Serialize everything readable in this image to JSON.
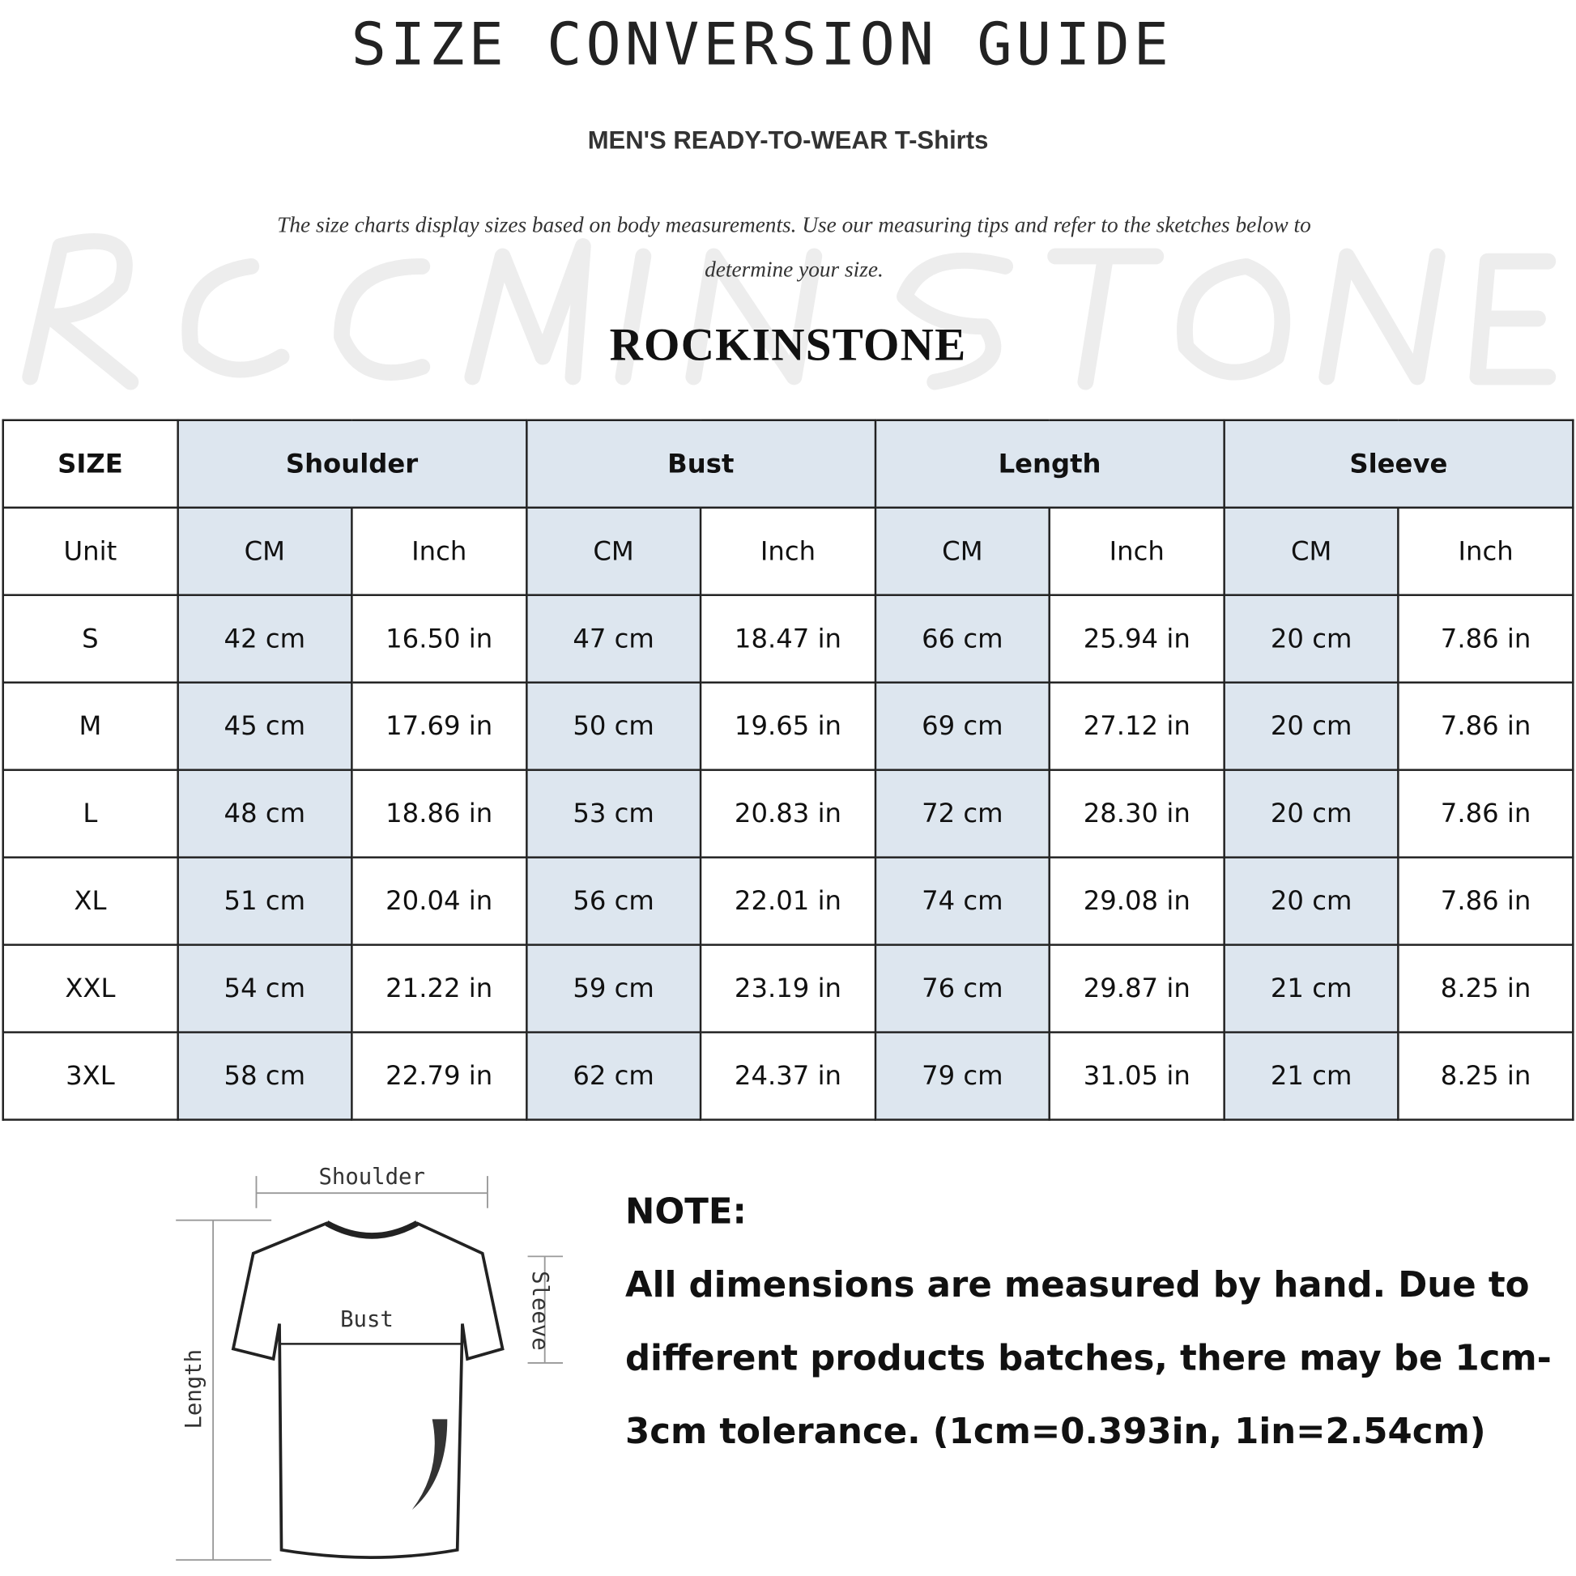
{
  "title": "SIZE CONVERSION GUIDE",
  "subtitle": "MEN'S READY-TO-WEAR T-Shirts",
  "intro": "The size charts display sizes based on body measurements. Use our measuring tips and refer to the sketches below to determine your size.",
  "watermark": "ROCKINSTONE",
  "brand": "ROCKINSTONE",
  "table": {
    "header": [
      "SIZE",
      "Shoulder",
      "Bust",
      "Length",
      "Sleeve"
    ],
    "unit_row": [
      "Unit",
      "CM",
      "Inch",
      "CM",
      "Inch",
      "CM",
      "Inch",
      "CM",
      "Inch"
    ],
    "rows": [
      [
        "S",
        "42 cm",
        "16.50 in",
        "47 cm",
        "18.47  in",
        "66 cm",
        "25.94  in",
        "20 cm",
        "7.86  in"
      ],
      [
        "M",
        "45 cm",
        "17.69  in",
        "50 cm",
        "19.65  in",
        "69 cm",
        "27.12  in",
        "20 cm",
        "7.86  in"
      ],
      [
        "L",
        "48 cm",
        "18.86  in",
        "53 cm",
        "20.83  in",
        "72 cm",
        "28.30  in",
        "20 cm",
        "7.86  in"
      ],
      [
        "XL",
        "51 cm",
        "20.04  in",
        "56 cm",
        "22.01  in",
        "74 cm",
        "29.08  in",
        "20 cm",
        "7.86  in"
      ],
      [
        "XXL",
        "54 cm",
        "21.22  in",
        "59 cm",
        "23.19  in",
        "76 cm",
        "29.87  in",
        "21 cm",
        "8.25  in"
      ],
      [
        "3XL",
        "58 cm",
        "22.79  in",
        "62 cm",
        "24.37  in",
        "79 cm",
        "31.05  in",
        "21 cm",
        "8.25  in"
      ]
    ],
    "shade_color": "#dde6ef"
  },
  "sketch": {
    "shoulder": "Shoulder",
    "bust": "Bust",
    "length": "Length",
    "sleeve": "Sleeve"
  },
  "note": {
    "heading": "NOTE:",
    "text": "All dimensions are measured by hand. Due to different products batches, there may be 1cm-3cm tolerance. (1cm=0.393in, 1in=2.54cm)"
  }
}
